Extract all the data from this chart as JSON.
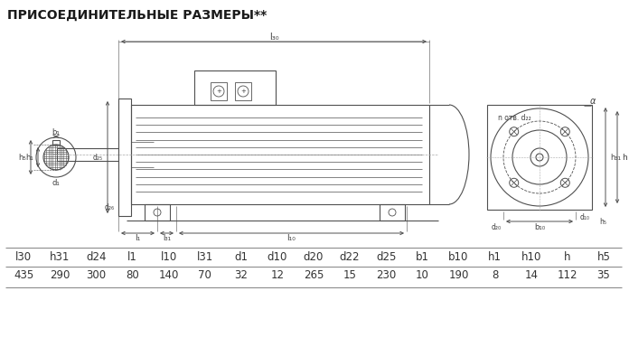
{
  "title": "ПРИСОЕДИНИТЕЛЬНЫЕ РАЗМЕРЫ**",
  "headers": [
    "l30",
    "h31",
    "d24",
    "l1",
    "l10",
    "l31",
    "d1",
    "d10",
    "d20",
    "d22",
    "d25",
    "b1",
    "b10",
    "h1",
    "h10",
    "h",
    "h5"
  ],
  "values": [
    "435",
    "290",
    "300",
    "80",
    "140",
    "70",
    "32",
    "12",
    "265",
    "15",
    "230",
    "10",
    "190",
    "8",
    "14",
    "112",
    "35"
  ],
  "bg_color": "#ffffff",
  "text_color": "#404040",
  "line_color": "#505050",
  "title_fontsize": 10,
  "table_fontsize": 9.5
}
